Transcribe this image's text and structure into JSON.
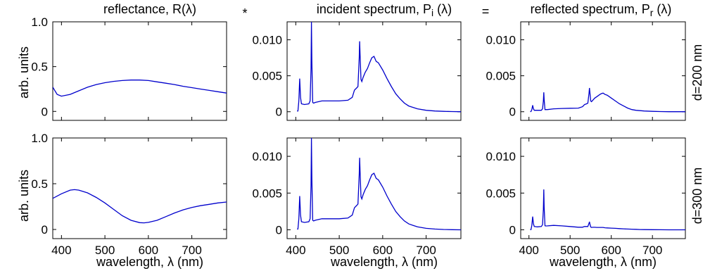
{
  "figure": {
    "operators": {
      "multiply": "*",
      "equals": "="
    },
    "column_titles": [
      {
        "main": "reflectance, R(λ)",
        "sub": ""
      },
      {
        "main": "incident spectrum, P",
        "sub": "i",
        "tail": " (λ)"
      },
      {
        "main": "reflected spectrum, P",
        "sub": "r",
        "tail": " (λ)"
      }
    ],
    "row_labels": [
      "d=200 nm",
      "d=300 nm"
    ],
    "ylabel": "arb. units",
    "xlabel": "wavelength, λ (nm)",
    "line_color": "#0000cc"
  },
  "chart_data": [
    {
      "type": "line",
      "panel": "reflectance-d200",
      "xlim": [
        380,
        780
      ],
      "ylim": [
        -0.1,
        1.0
      ],
      "yticks": [
        "0",
        "0.5",
        "1.0"
      ],
      "ytick_values": [
        0,
        0.5,
        1.0
      ],
      "xticks": [],
      "x": [
        380,
        390,
        400,
        420,
        440,
        460,
        480,
        500,
        520,
        540,
        560,
        580,
        600,
        620,
        640,
        660,
        680,
        700,
        720,
        740,
        760,
        780
      ],
      "y": [
        0.27,
        0.19,
        0.17,
        0.19,
        0.23,
        0.27,
        0.3,
        0.32,
        0.335,
        0.345,
        0.35,
        0.35,
        0.345,
        0.33,
        0.315,
        0.3,
        0.28,
        0.265,
        0.25,
        0.235,
        0.22,
        0.205
      ]
    },
    {
      "type": "line",
      "panel": "incident-d200",
      "xlim": [
        380,
        780
      ],
      "ylim": [
        -0.0012,
        0.0125
      ],
      "yticks": [
        "0",
        "0.005",
        "0.010"
      ],
      "ytick_values": [
        0,
        0.005,
        0.01
      ],
      "xticks": [],
      "x": [
        403,
        405,
        407,
        409,
        411,
        413,
        420,
        430,
        433,
        435,
        436,
        437,
        439,
        441,
        445,
        460,
        480,
        500,
        520,
        530,
        535,
        540,
        543,
        546,
        547,
        548,
        550,
        552,
        555,
        560,
        565,
        570,
        575,
        580,
        585,
        590,
        600,
        610,
        620,
        630,
        640,
        650,
        660,
        670,
        680,
        700,
        720,
        740,
        760,
        780
      ],
      "y": [
        0.0001,
        0.0001,
        0.0015,
        0.0046,
        0.002,
        0.0011,
        0.001,
        0.0011,
        0.0015,
        0.006,
        0.0125,
        0.007,
        0.0013,
        0.0012,
        0.0013,
        0.0015,
        0.0015,
        0.0015,
        0.0016,
        0.002,
        0.003,
        0.0033,
        0.0035,
        0.0075,
        0.0098,
        0.008,
        0.0045,
        0.0042,
        0.0048,
        0.0055,
        0.006,
        0.0068,
        0.0075,
        0.0077,
        0.007,
        0.0068,
        0.0058,
        0.0046,
        0.0035,
        0.0025,
        0.0018,
        0.0012,
        0.0008,
        0.0006,
        0.0004,
        0.0002,
        0.0001,
        5e-05,
        2e-05,
        0.0
      ]
    },
    {
      "type": "line",
      "panel": "reflected-d200",
      "xlim": [
        380,
        780
      ],
      "ylim": [
        -0.0012,
        0.0125
      ],
      "yticks": [
        "0",
        "0.005",
        "0.010"
      ],
      "ytick_values": [
        0,
        0.005,
        0.01
      ],
      "xticks": [],
      "x": [
        403,
        405,
        407,
        409,
        411,
        413,
        420,
        430,
        433,
        435,
        436,
        437,
        439,
        441,
        445,
        460,
        480,
        500,
        520,
        530,
        535,
        540,
        543,
        546,
        547,
        548,
        550,
        552,
        555,
        560,
        565,
        570,
        575,
        580,
        585,
        590,
        600,
        610,
        620,
        630,
        640,
        650,
        660,
        670,
        680,
        700,
        720,
        740,
        760,
        780
      ],
      "y": [
        2e-05,
        2e-05,
        0.0003,
        0.0009,
        0.0004,
        0.0002,
        0.0002,
        0.0002,
        0.0004,
        0.0015,
        0.0027,
        0.0017,
        0.0003,
        0.0003,
        0.0003,
        0.0004,
        0.00045,
        0.00048,
        0.0005,
        0.0007,
        0.001,
        0.0011,
        0.0012,
        0.0026,
        0.0033,
        0.0027,
        0.0015,
        0.0014,
        0.0016,
        0.0019,
        0.0021,
        0.0023,
        0.0025,
        0.0026,
        0.0024,
        0.0023,
        0.0019,
        0.0015,
        0.0011,
        0.0008,
        0.0005,
        0.0003,
        0.0002,
        0.00015,
        0.0001,
        5e-05,
        2e-05,
        0.0,
        0.0,
        0.0
      ]
    },
    {
      "type": "line",
      "panel": "reflectance-d300",
      "xlim": [
        380,
        780
      ],
      "ylim": [
        -0.1,
        1.0
      ],
      "yticks": [
        "0",
        "0.5",
        "1.0"
      ],
      "ytick_values": [
        0,
        0.5,
        1.0
      ],
      "xticks": [
        "400",
        "500",
        "600",
        "700"
      ],
      "xtick_values": [
        400,
        500,
        600,
        700
      ],
      "x": [
        380,
        400,
        420,
        430,
        440,
        460,
        480,
        500,
        520,
        540,
        560,
        580,
        590,
        600,
        620,
        640,
        660,
        680,
        700,
        720,
        740,
        760,
        780
      ],
      "y": [
        0.34,
        0.39,
        0.43,
        0.435,
        0.43,
        0.4,
        0.35,
        0.29,
        0.22,
        0.15,
        0.1,
        0.075,
        0.072,
        0.078,
        0.1,
        0.14,
        0.18,
        0.215,
        0.24,
        0.26,
        0.275,
        0.29,
        0.3
      ]
    },
    {
      "type": "line",
      "panel": "incident-d300",
      "xlim": [
        380,
        780
      ],
      "ylim": [
        -0.0012,
        0.0125
      ],
      "yticks": [
        "0",
        "0.005",
        "0.010"
      ],
      "ytick_values": [
        0,
        0.005,
        0.01
      ],
      "xticks": [
        "400",
        "500",
        "600",
        "700"
      ],
      "xtick_values": [
        400,
        500,
        600,
        700
      ],
      "x": [
        403,
        405,
        407,
        409,
        411,
        413,
        420,
        430,
        433,
        435,
        436,
        437,
        439,
        441,
        445,
        460,
        480,
        500,
        520,
        530,
        535,
        540,
        543,
        546,
        547,
        548,
        550,
        552,
        555,
        560,
        565,
        570,
        575,
        580,
        585,
        590,
        600,
        610,
        620,
        630,
        640,
        650,
        660,
        670,
        680,
        700,
        720,
        740,
        760,
        780
      ],
      "y": [
        0.0001,
        0.0001,
        0.0015,
        0.0046,
        0.002,
        0.0011,
        0.001,
        0.0011,
        0.0015,
        0.006,
        0.0125,
        0.007,
        0.0013,
        0.0012,
        0.0013,
        0.0015,
        0.0015,
        0.0015,
        0.0016,
        0.002,
        0.003,
        0.0033,
        0.0035,
        0.0075,
        0.0098,
        0.008,
        0.0045,
        0.0042,
        0.0048,
        0.0055,
        0.006,
        0.0068,
        0.0075,
        0.0077,
        0.007,
        0.0068,
        0.0058,
        0.0046,
        0.0035,
        0.0025,
        0.0018,
        0.0012,
        0.0008,
        0.0006,
        0.0004,
        0.0002,
        0.0001,
        5e-05,
        2e-05,
        0.0
      ]
    },
    {
      "type": "line",
      "panel": "reflected-d300",
      "xlim": [
        380,
        780
      ],
      "ylim": [
        -0.0012,
        0.0125
      ],
      "yticks": [
        "0",
        "0.005",
        "0.010"
      ],
      "ytick_values": [
        0,
        0.005,
        0.01
      ],
      "xticks": [
        "400",
        "500",
        "600",
        "700"
      ],
      "xtick_values": [
        400,
        500,
        600,
        700
      ],
      "x": [
        403,
        405,
        407,
        409,
        411,
        413,
        420,
        430,
        433,
        435,
        436,
        437,
        439,
        441,
        445,
        460,
        480,
        500,
        520,
        530,
        535,
        540,
        543,
        546,
        547,
        548,
        550,
        552,
        555,
        560,
        565,
        570,
        575,
        580,
        585,
        590,
        600,
        610,
        620,
        630,
        640,
        650,
        660,
        670,
        680,
        700,
        720,
        740,
        760,
        780
      ],
      "y": [
        3e-05,
        3e-05,
        0.0006,
        0.0018,
        0.0008,
        0.00045,
        0.0004,
        0.00045,
        0.0007,
        0.0028,
        0.0055,
        0.0031,
        0.00055,
        0.00052,
        0.00053,
        0.0006,
        0.00053,
        0.00045,
        0.00035,
        0.00035,
        0.00045,
        0.00045,
        0.00045,
        0.0009,
        0.0011,
        0.0008,
        0.00038,
        0.00032,
        0.00034,
        0.00034,
        0.00032,
        0.00032,
        0.00032,
        0.00032,
        0.00028,
        0.00026,
        0.00023,
        0.0002,
        0.00016,
        0.00013,
        0.0001,
        8e-05,
        6e-05,
        4e-05,
        3e-05,
        2e-05,
        1e-05,
        0.0,
        0.0,
        0.0
      ]
    }
  ]
}
